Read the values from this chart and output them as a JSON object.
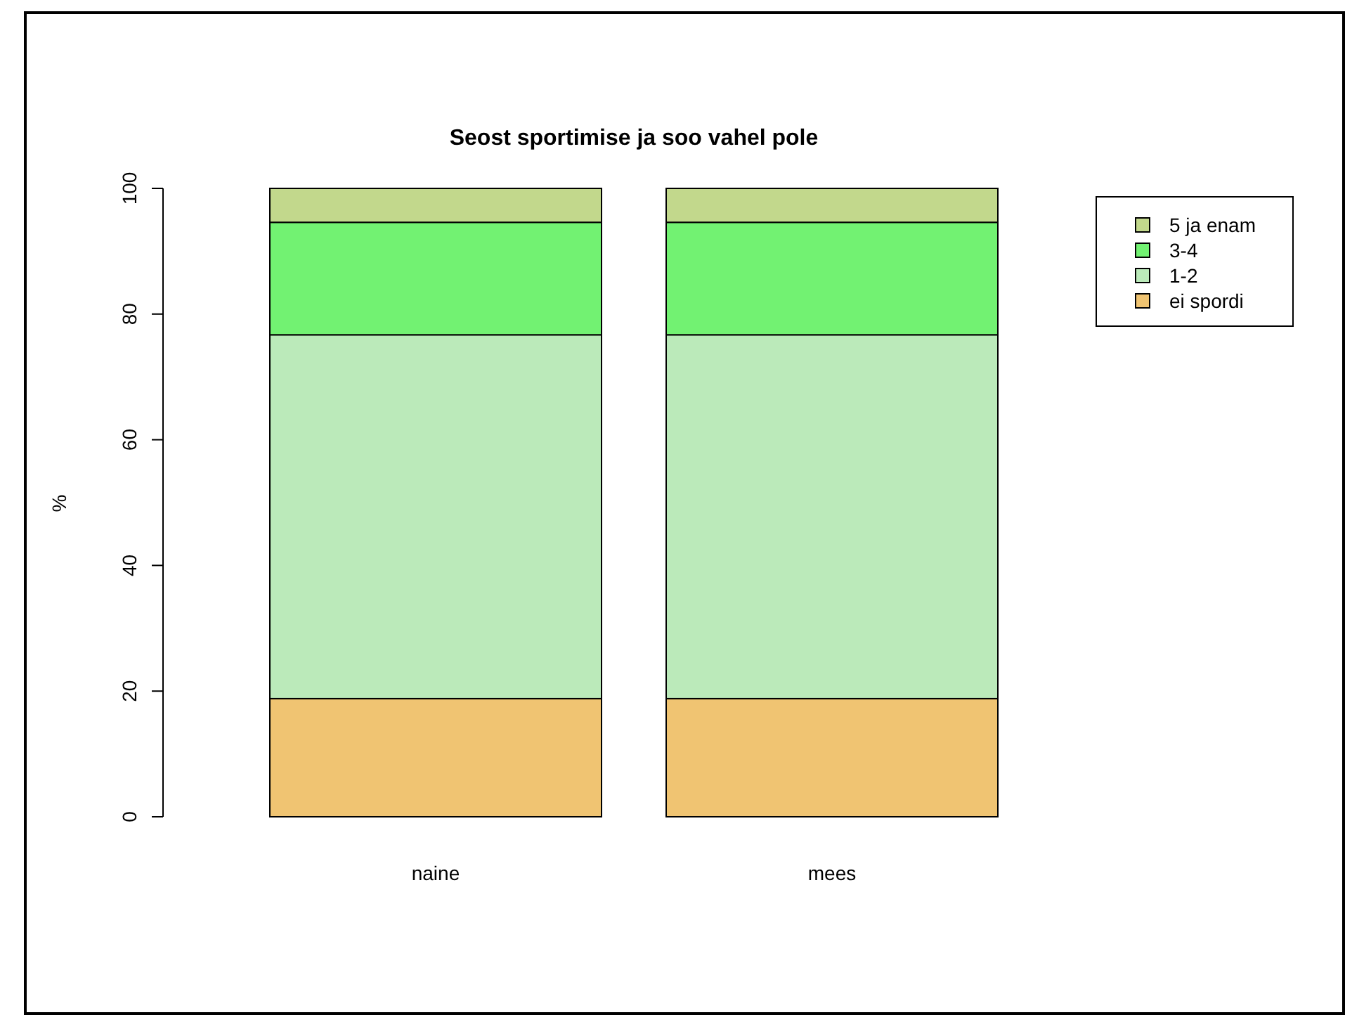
{
  "chart_data": {
    "type": "bar",
    "title": "Seost sportimise ja soo vahel pole",
    "ylabel": "%",
    "categories": [
      "naine",
      "mees"
    ],
    "stacked": true,
    "ylim": [
      0,
      100
    ],
    "yticks": [
      0,
      20,
      40,
      60,
      80,
      100
    ],
    "legend": "top right",
    "series": [
      {
        "name": "ei spordi",
        "color": "#f0c472",
        "values": [
          18.8,
          18.8
        ]
      },
      {
        "name": "1-2",
        "color": "#bbeaba",
        "values": [
          57.9,
          57.9
        ]
      },
      {
        "name": "3-4",
        "color": "#72f272",
        "values": [
          17.9,
          17.9
        ]
      },
      {
        "name": "5 ja enam",
        "color": "#c2d88c",
        "values": [
          5.4,
          5.4
        ]
      }
    ]
  }
}
